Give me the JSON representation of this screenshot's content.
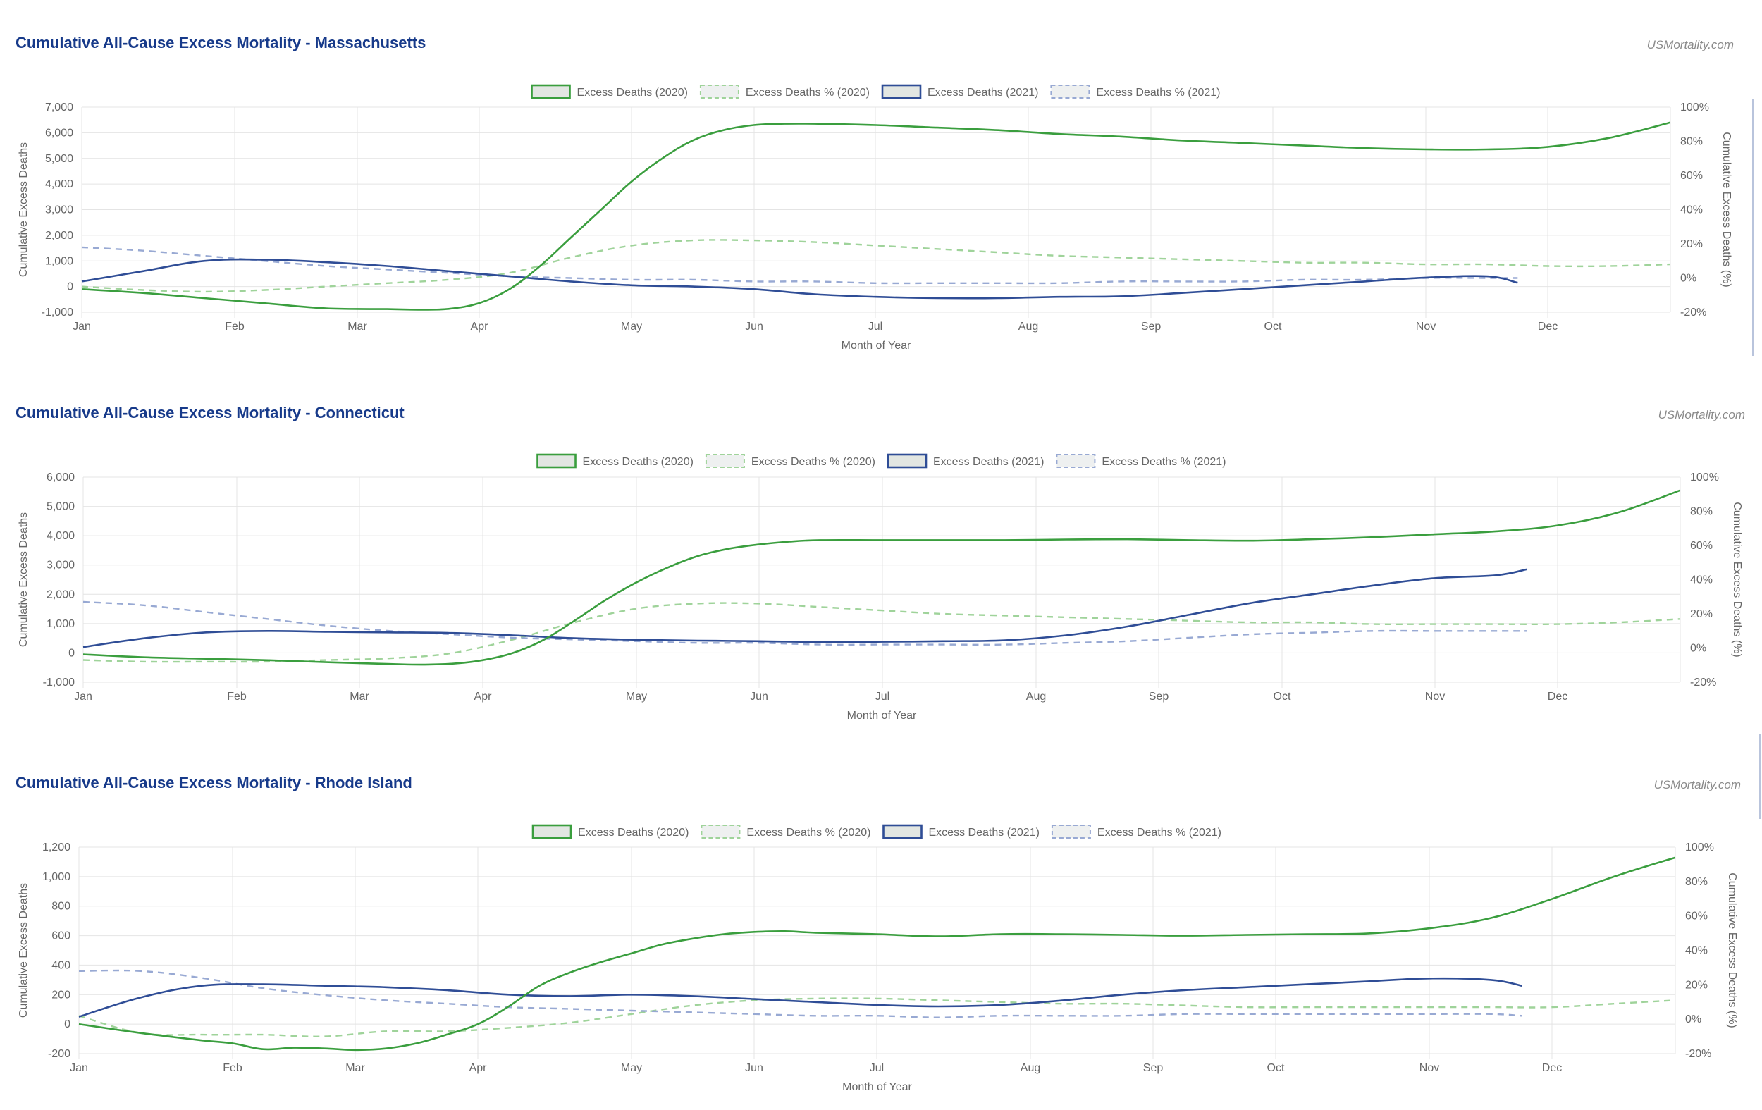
{
  "colors": {
    "deaths_2020": "#3a9e3e",
    "pct_2020": "#9fd39a",
    "deaths_2021": "#2f4d96",
    "pct_2021": "#98a9d3",
    "title": "#173a8a",
    "grid": "#e4e4e4",
    "tick": "#666666"
  },
  "chart_data": [
    {
      "type": "line",
      "title": "Cumulative All-Cause Excess Mortality - Massachusetts",
      "source": "USMortality.com",
      "xlabel": "Month of Year",
      "ylabel": "Cumulative Excess Deaths",
      "y2label": "Cumulative Excess Deaths (%)",
      "months": [
        "Jan",
        "Feb",
        "Mar",
        "Apr",
        "May",
        "Jun",
        "Jul",
        "Aug",
        "Sep",
        "Oct",
        "Nov",
        "Dec"
      ],
      "x_range": [
        0,
        52
      ],
      "ylim": [
        -1000,
        7000
      ],
      "yticks": [
        -1000,
        0,
        1000,
        2000,
        3000,
        4000,
        5000,
        6000,
        7000
      ],
      "ytick_labels": [
        "-1,000",
        "0",
        "1,000",
        "2,000",
        "3,000",
        "4,000",
        "5,000",
        "6,000",
        "7,000"
      ],
      "y2lim": [
        -20,
        100
      ],
      "y2ticks": [
        -20,
        0,
        20,
        40,
        60,
        80,
        100
      ],
      "y2tick_labels": [
        "-20%",
        "0%",
        "20%",
        "40%",
        "60%",
        "80%",
        "100%"
      ],
      "grid": true,
      "legend_position": "top-center",
      "series": [
        {
          "name": "Excess Deaths (2020)",
          "axis": "left",
          "style": "solid",
          "color_key": "deaths_2020",
          "x": [
            0,
            2,
            4,
            6,
            8,
            10,
            11,
            12,
            13,
            14,
            15,
            16,
            17,
            18,
            19,
            20,
            21,
            22,
            23,
            24,
            26,
            28,
            30,
            32,
            34,
            36,
            38,
            40,
            42,
            44,
            46,
            48,
            50,
            52
          ],
          "y": [
            -100,
            -250,
            -450,
            -650,
            -850,
            -880,
            -900,
            -870,
            -650,
            -100,
            800,
            1900,
            3000,
            4100,
            5000,
            5700,
            6100,
            6300,
            6350,
            6350,
            6300,
            6200,
            6100,
            5950,
            5850,
            5700,
            5600,
            5500,
            5400,
            5350,
            5350,
            5450,
            5800,
            6400
          ]
        },
        {
          "name": "Excess Deaths % (2020)",
          "axis": "right",
          "style": "dashed",
          "color_key": "pct_2020",
          "x": [
            0,
            2,
            4,
            6,
            8,
            10,
            12,
            14,
            16,
            18,
            20,
            22,
            24,
            26,
            28,
            30,
            32,
            34,
            36,
            38,
            40,
            42,
            44,
            46,
            48,
            50,
            52
          ],
          "y": [
            -5,
            -7,
            -8,
            -7,
            -5,
            -3,
            -1,
            3,
            12,
            19,
            22,
            22,
            21,
            19,
            17,
            15,
            13,
            12,
            11,
            10,
            9,
            9,
            8,
            8,
            7,
            7,
            8
          ]
        },
        {
          "name": "Excess Deaths (2021)",
          "axis": "left",
          "style": "solid",
          "color_key": "deaths_2021",
          "x": [
            0,
            2,
            4,
            6,
            8,
            10,
            12,
            14,
            16,
            18,
            20,
            22,
            24,
            26,
            28,
            30,
            32,
            34,
            36,
            38,
            40,
            42,
            44,
            46,
            47
          ],
          "y": [
            200,
            600,
            1000,
            1050,
            950,
            800,
            600,
            400,
            200,
            50,
            0,
            -100,
            -300,
            -400,
            -450,
            -450,
            -400,
            -380,
            -250,
            -100,
            50,
            200,
            350,
            400,
            150
          ]
        },
        {
          "name": "Excess Deaths % (2021)",
          "axis": "right",
          "style": "dashed",
          "color_key": "pct_2021",
          "x": [
            0,
            2,
            4,
            6,
            8,
            10,
            12,
            14,
            16,
            18,
            20,
            22,
            24,
            26,
            28,
            30,
            32,
            34,
            36,
            38,
            40,
            42,
            44,
            46,
            47
          ],
          "y": [
            18,
            16,
            13,
            10,
            7,
            5,
            3,
            1,
            0,
            -1,
            -1,
            -2,
            -2,
            -3,
            -3,
            -3,
            -3,
            -2,
            -2,
            -2,
            -1,
            -1,
            0,
            0,
            0
          ]
        }
      ]
    },
    {
      "type": "line",
      "title": "Cumulative All-Cause Excess Mortality - Connecticut",
      "source": "USMortality.com",
      "xlabel": "Month of Year",
      "ylabel": "Cumulative Excess Deaths",
      "y2label": "Cumulative Excess Deaths (%)",
      "months": [
        "Jan",
        "Feb",
        "Mar",
        "Apr",
        "May",
        "Jun",
        "Jul",
        "Aug",
        "Sep",
        "Oct",
        "Nov",
        "Dec"
      ],
      "x_range": [
        0,
        52
      ],
      "ylim": [
        -1000,
        6000
      ],
      "yticks": [
        -1000,
        0,
        1000,
        2000,
        3000,
        4000,
        5000,
        6000
      ],
      "ytick_labels": [
        "-1,000",
        "0",
        "1,000",
        "2,000",
        "3,000",
        "4,000",
        "5,000",
        "6,000"
      ],
      "y2lim": [
        -20,
        100
      ],
      "y2ticks": [
        -20,
        0,
        20,
        40,
        60,
        80,
        100
      ],
      "y2tick_labels": [
        "-20%",
        "0%",
        "20%",
        "40%",
        "60%",
        "80%",
        "100%"
      ],
      "grid": true,
      "legend_position": "top-center",
      "series": [
        {
          "name": "Excess Deaths (2020)",
          "axis": "left",
          "style": "solid",
          "color_key": "deaths_2020",
          "x": [
            0,
            2,
            4,
            6,
            8,
            10,
            11,
            12,
            13,
            14,
            15,
            16,
            17,
            18,
            19,
            20,
            21,
            22,
            23,
            24,
            26,
            28,
            30,
            32,
            34,
            36,
            38,
            40,
            42,
            44,
            46,
            48,
            50,
            52
          ],
          "y": [
            -50,
            -150,
            -200,
            -250,
            -320,
            -380,
            -400,
            -370,
            -250,
            0,
            450,
            1100,
            1800,
            2400,
            2900,
            3300,
            3550,
            3700,
            3800,
            3850,
            3850,
            3850,
            3850,
            3870,
            3880,
            3850,
            3830,
            3880,
            3950,
            4050,
            4150,
            4350,
            4800,
            5550
          ]
        },
        {
          "name": "Excess Deaths % (2020)",
          "axis": "right",
          "style": "dashed",
          "color_key": "pct_2020",
          "x": [
            0,
            2,
            4,
            6,
            8,
            10,
            12,
            14,
            16,
            18,
            20,
            22,
            24,
            26,
            28,
            30,
            32,
            34,
            36,
            38,
            40,
            42,
            44,
            46,
            48,
            50,
            52
          ],
          "y": [
            -7,
            -8,
            -8,
            -8,
            -7,
            -6,
            -3,
            5,
            15,
            23,
            26,
            26,
            24,
            22,
            20,
            19,
            18,
            17,
            16,
            15,
            15,
            14,
            14,
            14,
            14,
            15,
            17
          ]
        },
        {
          "name": "Excess Deaths (2021)",
          "axis": "left",
          "style": "solid",
          "color_key": "deaths_2021",
          "x": [
            0,
            2,
            4,
            6,
            8,
            10,
            12,
            14,
            16,
            18,
            20,
            22,
            24,
            26,
            28,
            30,
            32,
            34,
            36,
            38,
            40,
            42,
            44,
            46,
            47
          ],
          "y": [
            200,
            500,
            700,
            750,
            720,
            700,
            680,
            600,
            500,
            450,
            420,
            400,
            370,
            380,
            400,
            430,
            600,
            900,
            1300,
            1700,
            2000,
            2300,
            2550,
            2650,
            2850
          ]
        },
        {
          "name": "Excess Deaths % (2021)",
          "axis": "right",
          "style": "dashed",
          "color_key": "pct_2021",
          "x": [
            0,
            2,
            4,
            6,
            8,
            10,
            12,
            14,
            16,
            18,
            20,
            22,
            24,
            26,
            28,
            30,
            32,
            34,
            36,
            38,
            40,
            42,
            44,
            46,
            47
          ],
          "y": [
            27,
            25,
            21,
            17,
            13,
            10,
            8,
            6,
            5,
            4,
            3,
            3,
            2,
            2,
            2,
            2,
            3,
            4,
            6,
            8,
            9,
            10,
            10,
            10,
            10
          ]
        }
      ]
    },
    {
      "type": "line",
      "title": "Cumulative All-Cause Excess Mortality - Rhode Island",
      "source": "USMortality.com",
      "xlabel": "Month of Year",
      "ylabel": "Cumulative Excess Deaths",
      "y2label": "Cumulative Excess Deaths (%)",
      "months": [
        "Jan",
        "Feb",
        "Mar",
        "Apr",
        "May",
        "Jun",
        "Jul",
        "Aug",
        "Sep",
        "Oct",
        "Nov",
        "Dec"
      ],
      "x_range": [
        0,
        52
      ],
      "ylim": [
        -200,
        1200
      ],
      "yticks": [
        -200,
        0,
        200,
        400,
        600,
        800,
        1000,
        1200
      ],
      "ytick_labels": [
        "-200",
        "0",
        "200",
        "400",
        "600",
        "800",
        "1,000",
        "1,200"
      ],
      "y2lim": [
        -20,
        100
      ],
      "y2ticks": [
        -20,
        0,
        20,
        40,
        60,
        80,
        100
      ],
      "y2tick_labels": [
        "-20%",
        "0%",
        "20%",
        "40%",
        "60%",
        "80%",
        "100%"
      ],
      "grid": true,
      "legend_position": "top-center",
      "series": [
        {
          "name": "Excess Deaths (2020)",
          "axis": "left",
          "style": "solid",
          "color_key": "deaths_2020",
          "x": [
            0,
            2,
            4,
            5,
            6,
            7,
            8,
            9,
            10,
            11,
            12,
            13,
            14,
            15,
            16,
            17,
            18,
            19,
            20,
            21,
            22,
            23,
            24,
            26,
            28,
            30,
            32,
            34,
            36,
            38,
            40,
            42,
            44,
            46,
            48,
            50,
            52
          ],
          "y": [
            0,
            -60,
            -110,
            -130,
            -170,
            -160,
            -165,
            -175,
            -165,
            -130,
            -70,
            0,
            120,
            260,
            350,
            420,
            480,
            540,
            580,
            610,
            625,
            630,
            620,
            610,
            595,
            610,
            610,
            605,
            600,
            605,
            610,
            615,
            650,
            720,
            850,
            1000,
            1130
          ]
        },
        {
          "name": "Excess Deaths % (2020)",
          "axis": "right",
          "style": "dashed",
          "color_key": "pct_2020",
          "x": [
            0,
            2,
            4,
            6,
            8,
            10,
            12,
            14,
            16,
            18,
            20,
            22,
            24,
            26,
            28,
            30,
            32,
            34,
            36,
            38,
            40,
            42,
            44,
            46,
            48,
            50,
            52
          ],
          "y": [
            2,
            -8,
            -9,
            -9,
            -10,
            -7,
            -7,
            -5,
            -2,
            3,
            8,
            11,
            12,
            12,
            11,
            10,
            9,
            9,
            8,
            7,
            7,
            7,
            7,
            7,
            7,
            9,
            11
          ]
        },
        {
          "name": "Excess Deaths (2021)",
          "axis": "left",
          "style": "solid",
          "color_key": "deaths_2021",
          "x": [
            0,
            2,
            4,
            6,
            8,
            10,
            12,
            14,
            16,
            18,
            20,
            22,
            24,
            26,
            28,
            30,
            32,
            34,
            36,
            38,
            40,
            42,
            44,
            46,
            47
          ],
          "y": [
            50,
            180,
            260,
            270,
            260,
            250,
            230,
            200,
            190,
            200,
            190,
            170,
            150,
            130,
            120,
            130,
            160,
            200,
            230,
            250,
            270,
            290,
            310,
            300,
            260
          ]
        },
        {
          "name": "Excess Deaths % (2021)",
          "axis": "right",
          "style": "dashed",
          "color_key": "pct_2021",
          "x": [
            0,
            2,
            4,
            6,
            8,
            10,
            12,
            14,
            16,
            18,
            20,
            22,
            24,
            26,
            28,
            30,
            32,
            34,
            36,
            38,
            40,
            42,
            44,
            46,
            47
          ],
          "y": [
            28,
            28,
            24,
            18,
            14,
            11,
            9,
            7,
            6,
            5,
            4,
            3,
            2,
            2,
            1,
            2,
            2,
            2,
            3,
            3,
            3,
            3,
            3,
            3,
            2
          ]
        }
      ]
    }
  ]
}
